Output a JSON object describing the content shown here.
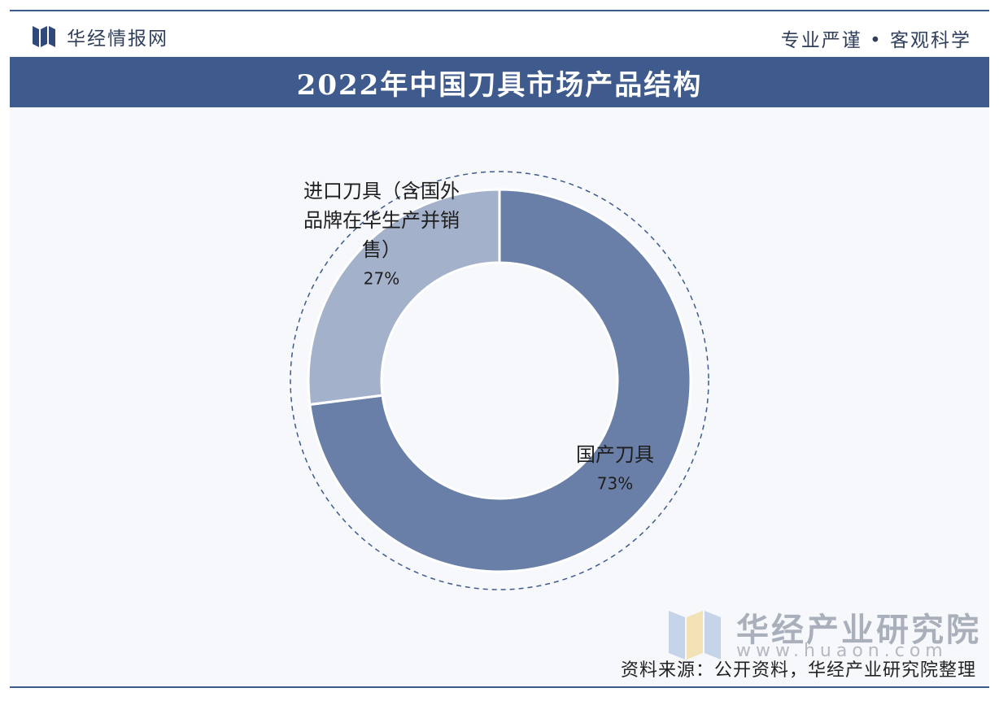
{
  "header": {
    "brand": "华经情报网",
    "slogan": "专业严谨 • 客观科学"
  },
  "title": "2022年中国刀具市场产品结构",
  "chart_data": {
    "type": "pie",
    "subtype": "donut",
    "slices": [
      {
        "label_lines": [
          "国产刀具"
        ],
        "value": 73,
        "value_label": "73%",
        "color": "#6a7fa7"
      },
      {
        "label_lines": [
          "进口刀具（含国外",
          "品牌在华生产并销",
          "售）"
        ],
        "value": 27,
        "value_label": "27%",
        "color": "#a4b1ca"
      }
    ]
  },
  "watermark": {
    "name": "华经产业研究院",
    "url": "www.huaon.com"
  },
  "source": "资料来源：公开资料，华经产业研究院整理",
  "colors": {
    "title_bar": "#3f5a8d",
    "background": "#f6f8fc"
  }
}
